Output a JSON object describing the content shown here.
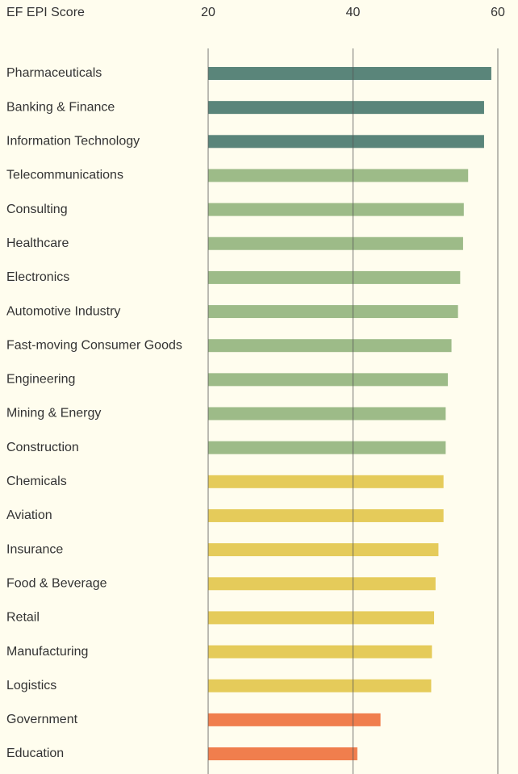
{
  "chart_data": {
    "type": "bar",
    "orientation": "horizontal",
    "xlabel": "EF EPI Score",
    "categories": [
      "Pharmaceuticals",
      "Banking & Finance",
      "Information Technology",
      "Telecommunications",
      "Consulting",
      "Healthcare",
      "Electronics",
      "Automotive Industry",
      "Fast-moving Consumer Goods",
      "Engineering",
      "Mining & Energy",
      "Construction",
      "Chemicals",
      "Aviation",
      "Insurance",
      "Food & Beverage",
      "Retail",
      "Manufacturing",
      "Logistics",
      "Government",
      "Education"
    ],
    "values": [
      59.1,
      58.1,
      58.1,
      55.9,
      55.3,
      55.2,
      54.8,
      54.5,
      53.6,
      53.1,
      52.8,
      52.8,
      52.5,
      52.5,
      51.8,
      51.4,
      51.2,
      50.9,
      50.8,
      43.8,
      40.6
    ],
    "colors": [
      "#5a857a",
      "#5a857a",
      "#5a857a",
      "#9dbb88",
      "#9dbb88",
      "#9dbb88",
      "#9dbb88",
      "#9dbb88",
      "#9dbb88",
      "#9dbb88",
      "#9dbb88",
      "#9dbb88",
      "#e5cb5a",
      "#e5cb5a",
      "#e5cb5a",
      "#e5cb5a",
      "#e5cb5a",
      "#e5cb5a",
      "#e5cb5a",
      "#f07e4d",
      "#f07e4d"
    ],
    "xlim": [
      20,
      60
    ],
    "xticks": [
      20,
      40,
      60
    ],
    "grid": true
  }
}
